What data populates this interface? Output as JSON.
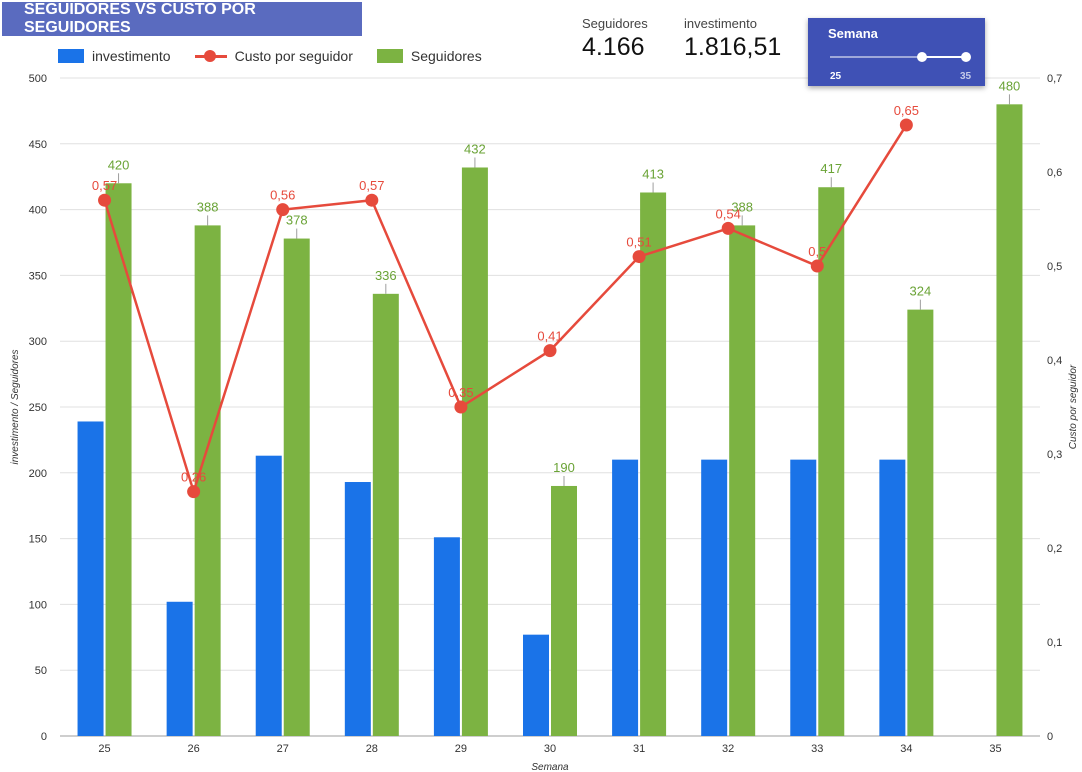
{
  "title": "SEGUIDORES VS CUSTO POR SEGUIDORES",
  "scorecards": [
    {
      "label": "Seguidores",
      "value": "4.166"
    },
    {
      "label": "investimento",
      "value": "1.816,51"
    }
  ],
  "control": {
    "title": "Semana",
    "min": "25",
    "max": "35",
    "selected_min": 33,
    "selected_max": 35
  },
  "colors": {
    "investimento": "#1a73e8",
    "seguidores": "#7cb342",
    "custo": "#e64a3c",
    "grid": "#e0e0e0",
    "header": "#5a6bbf",
    "control": "#3f51b5"
  },
  "chart_data": {
    "type": "bar",
    "categories": [
      "25",
      "26",
      "27",
      "28",
      "29",
      "30",
      "31",
      "32",
      "33",
      "34",
      "35"
    ],
    "xlabel": "Semana",
    "ylabel": "investimento / Seguidores",
    "y2label": "Custo por seguidor",
    "ylim": [
      0,
      500
    ],
    "y2lim": [
      0,
      0.7
    ],
    "yticks": [
      "0",
      "50",
      "100",
      "150",
      "200",
      "250",
      "300",
      "350",
      "400",
      "450",
      "500"
    ],
    "y2ticks": [
      "0",
      "0,1",
      "0,2",
      "0,3",
      "0,4",
      "0,5",
      "0,6",
      "0,7"
    ],
    "grid": true,
    "legend_position": "top-left",
    "series": [
      {
        "name": "investimento",
        "type": "bar",
        "axis": "left",
        "values": [
          239,
          102,
          213,
          193,
          151,
          77,
          210,
          210,
          210,
          210,
          null
        ]
      },
      {
        "name": "Custo por seguidor",
        "type": "line",
        "axis": "right",
        "values": [
          0.57,
          0.26,
          0.56,
          0.57,
          0.35,
          0.41,
          0.51,
          0.54,
          0.5,
          0.65,
          null
        ],
        "labels": [
          "0,57",
          "0,26",
          "0,56",
          "0,57",
          "0,35",
          "0,41",
          "0,51",
          "0,54",
          "0,5",
          "0,65",
          ""
        ]
      },
      {
        "name": "Seguidores",
        "type": "bar",
        "axis": "left",
        "values": [
          420,
          388,
          378,
          336,
          432,
          190,
          413,
          388,
          417,
          324,
          480
        ],
        "labels": [
          "420",
          "388",
          "378",
          "336",
          "432",
          "190",
          "413",
          "388",
          "417",
          "324",
          "480"
        ]
      }
    ]
  }
}
